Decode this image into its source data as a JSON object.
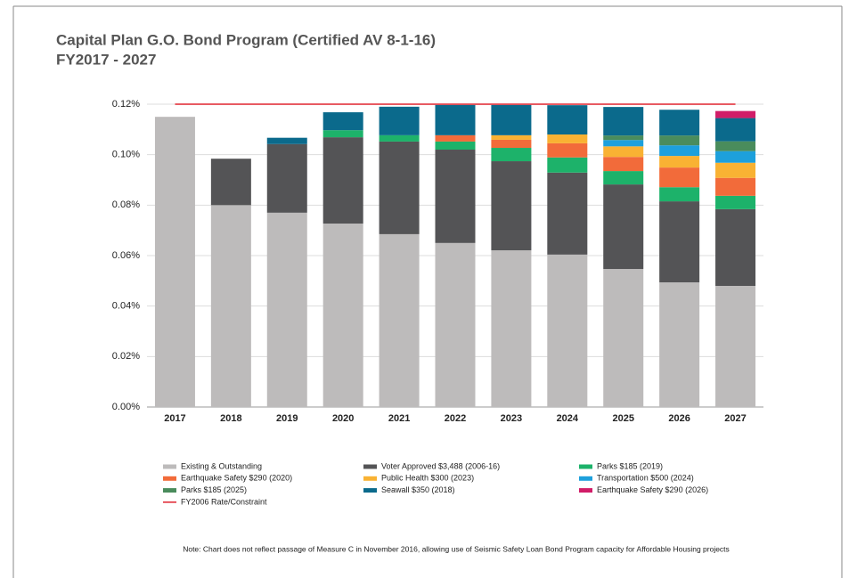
{
  "chart_data": {
    "type": "bar",
    "stacked": true,
    "title": "Capital Plan G.O. Bond Program (Certified AV 8-1-16)",
    "subtitle": "FY2017 - 2027",
    "note": "Note: Chart does not reflect passage of Measure C in November 2016, allowing use of Seismic Safety Loan Bond Program capacity for Affordable Housing projects",
    "categories": [
      "2017",
      "2018",
      "2019",
      "2020",
      "2021",
      "2022",
      "2023",
      "2024",
      "2025",
      "2026",
      "2027"
    ],
    "ylim": [
      0,
      0.12
    ],
    "yticks": [
      {
        "value": 0,
        "label": "0.00%"
      },
      {
        "value": 0.02,
        "label": "0.02%"
      },
      {
        "value": 0.04,
        "label": "0.04%"
      },
      {
        "value": 0.06,
        "label": "0.06%"
      },
      {
        "value": 0.08,
        "label": "0.08%"
      },
      {
        "value": 0.1,
        "label": "0.10%"
      },
      {
        "value": 0.12,
        "label": "0.12%"
      }
    ],
    "grid": true,
    "series": [
      {
        "name": "Existing & Outstanding",
        "color": "#bdbbbb",
        "values": [
          0.115,
          0.08,
          0.077,
          0.0727,
          0.0685,
          0.065,
          0.0621,
          0.0604,
          0.0547,
          0.0494,
          0.048
        ]
      },
      {
        "name": "Voter Approved $3,488 (2006-16)",
        "color": "#545456",
        "values": [
          null,
          0.0184,
          0.0272,
          0.0342,
          0.0367,
          0.037,
          0.0353,
          0.0325,
          0.0335,
          0.0321,
          0.0304
        ]
      },
      {
        "name": "Parks $185 (2019)",
        "color": "#1db26a",
        "values": [
          null,
          null,
          null,
          0.0028,
          0.0025,
          0.0032,
          0.0053,
          0.006,
          0.0053,
          0.0056,
          0.0053
        ]
      },
      {
        "name": "Earthquake Safety $290 (2020)",
        "color": "#f26b3a",
        "values": [
          null,
          null,
          null,
          null,
          null,
          0.0025,
          0.0032,
          0.0056,
          0.0056,
          0.0078,
          0.0071
        ]
      },
      {
        "name": "Public Health $300 (2023)",
        "color": "#f9b233",
        "values": [
          null,
          null,
          null,
          null,
          null,
          null,
          0.0018,
          0.0035,
          0.0042,
          0.0046,
          0.006
        ]
      },
      {
        "name": "Transportation $500 (2024)",
        "color": "#1da0dc",
        "values": [
          null,
          null,
          null,
          null,
          null,
          null,
          null,
          null,
          0.0025,
          0.0042,
          0.0046
        ]
      },
      {
        "name": "Parks $185 (2025)",
        "color": "#4a8c5c",
        "values": [
          null,
          null,
          null,
          null,
          null,
          null,
          null,
          null,
          0.0018,
          0.0039,
          0.0039
        ]
      },
      {
        "name": "Seawall $350 (2018)",
        "color": "#0b6a8c",
        "values": [
          null,
          null,
          0.0025,
          0.0071,
          0.0113,
          0.012,
          0.012,
          0.0116,
          0.0113,
          0.0102,
          0.0092
        ]
      },
      {
        "name": "Earthquake Safety $290 (2026)",
        "color": "#d11d68",
        "values": [
          null,
          null,
          null,
          null,
          null,
          null,
          null,
          null,
          null,
          null,
          0.0028
        ]
      },
      {
        "name": "FY2006 Rate/Constraint",
        "color": "#e0242f",
        "kind": "line",
        "values": [
          0.12,
          0.12,
          0.12,
          0.12,
          0.12,
          0.12,
          0.12,
          0.12,
          0.12,
          0.12,
          0.12
        ]
      }
    ]
  }
}
